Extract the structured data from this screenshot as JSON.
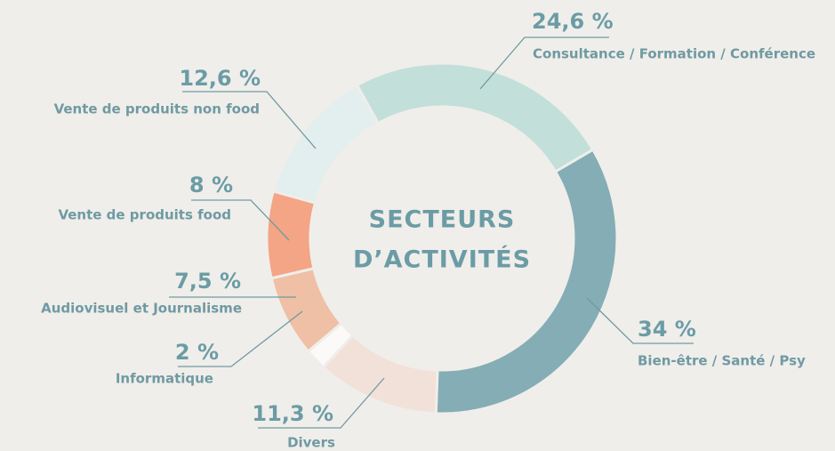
{
  "chart_data": {
    "type": "donut",
    "center_title": [
      "SECTEURS",
      "D’ACTIVITÉS"
    ],
    "categories": [
      "Consultance / Formation / Conférence",
      "Bien-être / Santé / Psy",
      "Divers",
      "Informatique",
      "Audiovisuel et Journalisme",
      "Vente de produits food",
      "Vente de produits non food"
    ],
    "values": [
      24.6,
      34,
      11.3,
      2,
      7.5,
      8,
      12.6
    ],
    "value_labels": [
      "24,6 %",
      "34 %",
      "11,3 %",
      "2 %",
      "7,5 %",
      "8 %",
      "12,6 %"
    ],
    "colors": [
      "#c2dfd9",
      "#85adb5",
      "#f2e1d9",
      "#fbfaf8",
      "#efc0a6",
      "#f3a586",
      "#e3eeee"
    ]
  }
}
